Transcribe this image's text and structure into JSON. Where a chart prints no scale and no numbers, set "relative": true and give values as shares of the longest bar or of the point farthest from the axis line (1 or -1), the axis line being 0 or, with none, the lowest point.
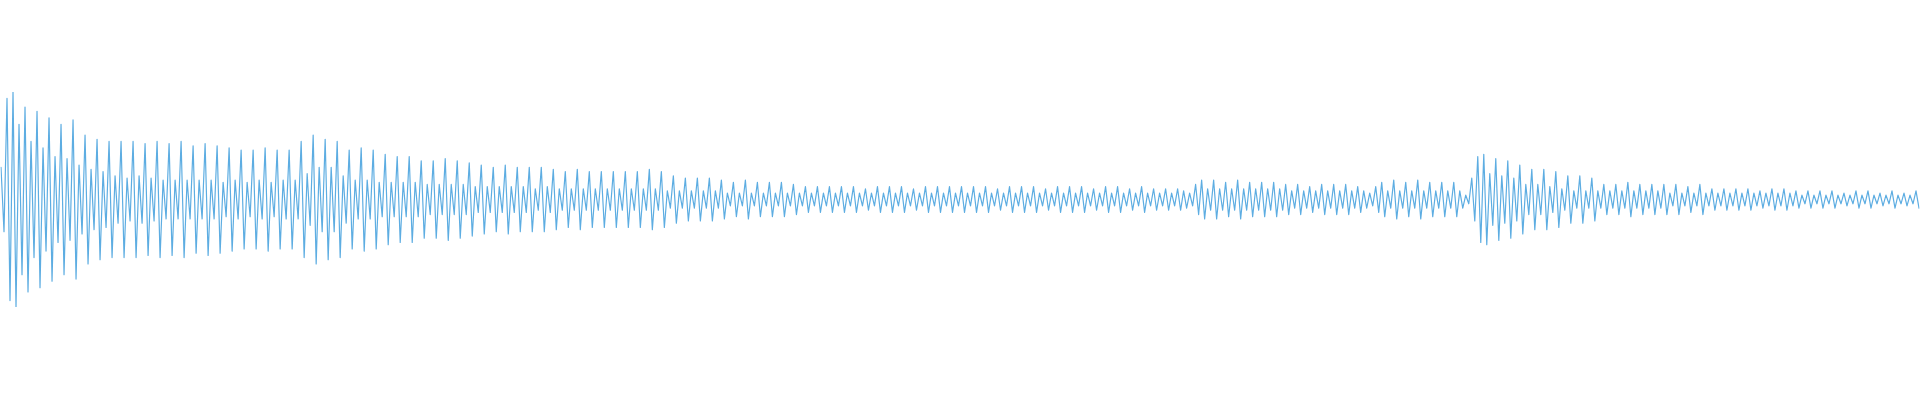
{
  "chart_data": {
    "type": "line",
    "relative": true,
    "color": "#5dade2",
    "categories": [
      null,
      null,
      null,
      null,
      null,
      null,
      null,
      null,
      null,
      null,
      null,
      null,
      null,
      null,
      null,
      null,
      null,
      null,
      null,
      null,
      null,
      null,
      null,
      null,
      null,
      null,
      null,
      null,
      null,
      null,
      null,
      null,
      null,
      null,
      null,
      null,
      null,
      null,
      null,
      null,
      null,
      null,
      null,
      null,
      null,
      null,
      null,
      null,
      null,
      null,
      null,
      null,
      null,
      null,
      null,
      null,
      null,
      null,
      null,
      null,
      null,
      null,
      null,
      null,
      null,
      null,
      null,
      null,
      null,
      null,
      null,
      null,
      null,
      null,
      null,
      null,
      null,
      null,
      null,
      null,
      null,
      null,
      null,
      null,
      null,
      null,
      null,
      null,
      null,
      null,
      null,
      null,
      null,
      null,
      null,
      null,
      null,
      null,
      null,
      null,
      null,
      null,
      null,
      null,
      null,
      null,
      null,
      null,
      null,
      null,
      null,
      null,
      null,
      null,
      null,
      null,
      null,
      null,
      null,
      null,
      null,
      null,
      null,
      null,
      null,
      null,
      null,
      null,
      null,
      null,
      null,
      null,
      null,
      null,
      null,
      null,
      null,
      null,
      null,
      null,
      null,
      null,
      null,
      null,
      null,
      null,
      null,
      null,
      null,
      null,
      null,
      null,
      null,
      null,
      null,
      null,
      null,
      null,
      null,
      null,
      null,
      null,
      null,
      null,
      null,
      null,
      null,
      null,
      null,
      null,
      null,
      null,
      null,
      null,
      null,
      null,
      null,
      null,
      null,
      null,
      null,
      null,
      null,
      null,
      null,
      null,
      null,
      null,
      null,
      null,
      null,
      null,
      null,
      null,
      null,
      null,
      null,
      null,
      null,
      null,
      null,
      null,
      null,
      null,
      null,
      null,
      null,
      null,
      null,
      null,
      null,
      null,
      null,
      null,
      null,
      null,
      null,
      null,
      null,
      null,
      null,
      null,
      null,
      null,
      null,
      null,
      null,
      null,
      null,
      null,
      null,
      null,
      null,
      null,
      null,
      null,
      null,
      null,
      null,
      null,
      null,
      null,
      null,
      null,
      null,
      null,
      null,
      null,
      null,
      null,
      null,
      null,
      null,
      null,
      null,
      null,
      null,
      null,
      null,
      null,
      null,
      null,
      null,
      null,
      null,
      null,
      null,
      null,
      null,
      null,
      null,
      null,
      null,
      null,
      null,
      null,
      null,
      null,
      null,
      null,
      null,
      null,
      null,
      null,
      null,
      null,
      null,
      null,
      null,
      null,
      null,
      null,
      null,
      null,
      null,
      null,
      null,
      null,
      null,
      null,
      null,
      null,
      null,
      null,
      null,
      null,
      null,
      null,
      null,
      null,
      null,
      null,
      null,
      null,
      null,
      null,
      null,
      null,
      null,
      null,
      null,
      null,
      null,
      null,
      null,
      null,
      null,
      null,
      null,
      null,
      null,
      null,
      null,
      null,
      null,
      null,
      null,
      null,
      null,
      null,
      null,
      null,
      null,
      null,
      null,
      null,
      null,
      null,
      null,
      null,
      null,
      null,
      null,
      null,
      null,
      null,
      null,
      null,
      null,
      null,
      null,
      null,
      null,
      null,
      null,
      null,
      null,
      null,
      null,
      null,
      null,
      null,
      null,
      null,
      null,
      null,
      null,
      null,
      null,
      null,
      null,
      null,
      null,
      null,
      null,
      null,
      null,
      null,
      null,
      null,
      null,
      null,
      null,
      null,
      null,
      null,
      null,
      null,
      null,
      null,
      null,
      null,
      null,
      null,
      null,
      null,
      null,
      null,
      null,
      null,
      null,
      null,
      null,
      null,
      null,
      null,
      null,
      null,
      null,
      null,
      null,
      null,
      null,
      null,
      null,
      null,
      null,
      null,
      null,
      null,
      null,
      null,
      null,
      null,
      null,
      null,
      null,
      null,
      null,
      null,
      null,
      null,
      null,
      null,
      null,
      null,
      null,
      null,
      null,
      null,
      null,
      null,
      null,
      null,
      null,
      null,
      null,
      null,
      null,
      null,
      null,
      null,
      null,
      null,
      null,
      null,
      null,
      null,
      null,
      null,
      null,
      null,
      null,
      null,
      null,
      null,
      null,
      null,
      null,
      null,
      null,
      null,
      null,
      null,
      null,
      null,
      null,
      null,
      null,
      null,
      null,
      null,
      null,
      null,
      null,
      null,
      null,
      null,
      null,
      null,
      null,
      null,
      null,
      null,
      null,
      null,
      null,
      null,
      null,
      null,
      null,
      null,
      null,
      null,
      null,
      null,
      null,
      null,
      null,
      null,
      null,
      null,
      null,
      null,
      null,
      null,
      null,
      null,
      null,
      null,
      null,
      null,
      null,
      null,
      null,
      null,
      null,
      null,
      null,
      null,
      null,
      null,
      null,
      null,
      null,
      null,
      null,
      null,
      null,
      null,
      null,
      null,
      null,
      null,
      null,
      null,
      null,
      null,
      null,
      null,
      null,
      null,
      null,
      null,
      null,
      null,
      null,
      null,
      null,
      null,
      null,
      null,
      null,
      null,
      null,
      null,
      null,
      null,
      null,
      null,
      null,
      null,
      null,
      null,
      null,
      null,
      null,
      null,
      null,
      null,
      null,
      null,
      null,
      null,
      null,
      null,
      null,
      null,
      null,
      null,
      null,
      null,
      null,
      null,
      null,
      null,
      null,
      null,
      null,
      null,
      null,
      null,
      null,
      null,
      null,
      null,
      null,
      null,
      null,
      null,
      null,
      null,
      null,
      null,
      null,
      null,
      null,
      null,
      null,
      null,
      null,
      null,
      null,
      null,
      null,
      null,
      null,
      null,
      null,
      null
    ],
    "values": [
      0.65,
      0.35,
      0.97,
      0.03,
      1.0,
      0.0,
      0.85,
      0.15,
      0.93,
      0.07,
      0.77,
      0.23,
      0.91,
      0.09,
      0.74,
      0.26,
      0.88,
      0.12,
      0.7,
      0.3,
      0.85,
      0.15,
      0.69,
      0.31,
      0.87,
      0.13,
      0.66,
      0.34,
      0.8,
      0.2,
      0.64,
      0.36,
      0.78,
      0.22,
      0.63,
      0.37,
      0.77,
      0.23,
      0.61,
      0.39,
      0.77,
      0.23,
      0.6,
      0.4,
      0.77,
      0.23,
      0.61,
      0.39,
      0.76,
      0.24,
      0.6,
      0.4,
      0.77,
      0.23,
      0.59,
      0.41,
      0.76,
      0.24,
      0.59,
      0.41,
      0.77,
      0.23,
      0.59,
      0.41,
      0.75,
      0.25,
      0.59,
      0.41,
      0.76,
      0.24,
      0.59,
      0.41,
      0.75,
      0.25,
      0.58,
      0.42,
      0.74,
      0.26,
      0.59,
      0.41,
      0.73,
      0.27,
      0.58,
      0.42,
      0.73,
      0.27,
      0.59,
      0.41,
      0.74,
      0.26,
      0.58,
      0.42,
      0.73,
      0.27,
      0.59,
      0.41,
      0.73,
      0.27,
      0.59,
      0.41,
      0.77,
      0.23,
      0.62,
      0.38,
      0.8,
      0.2,
      0.65,
      0.35,
      0.78,
      0.22,
      0.65,
      0.35,
      0.77,
      0.23,
      0.61,
      0.39,
      0.73,
      0.27,
      0.59,
      0.41,
      0.74,
      0.26,
      0.59,
      0.41,
      0.73,
      0.27,
      0.58,
      0.42,
      0.71,
      0.29,
      0.58,
      0.42,
      0.7,
      0.3,
      0.58,
      0.42,
      0.7,
      0.3,
      0.58,
      0.42,
      0.68,
      0.32,
      0.57,
      0.43,
      0.68,
      0.32,
      0.57,
      0.43,
      0.69,
      0.31,
      0.57,
      0.43,
      0.68,
      0.32,
      0.57,
      0.43,
      0.67,
      0.33,
      0.56,
      0.44,
      0.66,
      0.34,
      0.56,
      0.44,
      0.65,
      0.35,
      0.56,
      0.44,
      0.66,
      0.34,
      0.56,
      0.44,
      0.65,
      0.35,
      0.56,
      0.44,
      0.65,
      0.35,
      0.55,
      0.45,
      0.65,
      0.35,
      0.56,
      0.44,
      0.64,
      0.36,
      0.55,
      0.45,
      0.63,
      0.37,
      0.55,
      0.45,
      0.64,
      0.36,
      0.55,
      0.45,
      0.63,
      0.37,
      0.55,
      0.45,
      0.63,
      0.37,
      0.55,
      0.45,
      0.63,
      0.37,
      0.55,
      0.45,
      0.63,
      0.37,
      0.55,
      0.45,
      0.63,
      0.37,
      0.55,
      0.45,
      0.64,
      0.36,
      0.55,
      0.45,
      0.63,
      0.37,
      0.54,
      0.46,
      0.61,
      0.39,
      0.54,
      0.46,
      0.6,
      0.4,
      0.54,
      0.46,
      0.6,
      0.4,
      0.54,
      0.46,
      0.6,
      0.4,
      0.54,
      0.46,
      0.59,
      0.41,
      0.53,
      0.47,
      0.58,
      0.42,
      0.53,
      0.47,
      0.59,
      0.41,
      0.53,
      0.47,
      0.58,
      0.42,
      0.53,
      0.47,
      0.58,
      0.42,
      0.53,
      0.47,
      0.58,
      0.42,
      0.53,
      0.47,
      0.57,
      0.43,
      0.53,
      0.47,
      0.56,
      0.44,
      0.53,
      0.47,
      0.56,
      0.44,
      0.53,
      0.47,
      0.56,
      0.44,
      0.53,
      0.47,
      0.56,
      0.44,
      0.53,
      0.47,
      0.56,
      0.44,
      0.53,
      0.47,
      0.55,
      0.45,
      0.53,
      0.47,
      0.56,
      0.44,
      0.53,
      0.47,
      0.56,
      0.44,
      0.53,
      0.47,
      0.56,
      0.44,
      0.53,
      0.47,
      0.55,
      0.45,
      0.53,
      0.47,
      0.56,
      0.44,
      0.53,
      0.47,
      0.56,
      0.44,
      0.53,
      0.47,
      0.56,
      0.44,
      0.53,
      0.47,
      0.56,
      0.44,
      0.53,
      0.47,
      0.56,
      0.44,
      0.53,
      0.47,
      0.56,
      0.44,
      0.53,
      0.47,
      0.55,
      0.45,
      0.53,
      0.47,
      0.56,
      0.44,
      0.53,
      0.47,
      0.56,
      0.44,
      0.53,
      0.47,
      0.56,
      0.44,
      0.53,
      0.47,
      0.55,
      0.45,
      0.53,
      0.47,
      0.56,
      0.44,
      0.53,
      0.47,
      0.56,
      0.44,
      0.53,
      0.47,
      0.56,
      0.44,
      0.53,
      0.47,
      0.55,
      0.45,
      0.53,
      0.47,
      0.56,
      0.44,
      0.53,
      0.47,
      0.56,
      0.44,
      0.53,
      0.47,
      0.55,
      0.45,
      0.53,
      0.47,
      0.56,
      0.44,
      0.53,
      0.47,
      0.55,
      0.45,
      0.53,
      0.47,
      0.55,
      0.45,
      0.53,
      0.47,
      0.55,
      0.45,
      0.54,
      0.46,
      0.53,
      0.47,
      0.57,
      0.43,
      0.59,
      0.41,
      0.55,
      0.45,
      0.59,
      0.41,
      0.55,
      0.45,
      0.58,
      0.42,
      0.55,
      0.45,
      0.59,
      0.41,
      0.55,
      0.45,
      0.58,
      0.42,
      0.55,
      0.45,
      0.58,
      0.42,
      0.55,
      0.45,
      0.58,
      0.42,
      0.55,
      0.45,
      0.57,
      0.43,
      0.54,
      0.46,
      0.57,
      0.43,
      0.54,
      0.46,
      0.56,
      0.44,
      0.54,
      0.46,
      0.57,
      0.43,
      0.54,
      0.46,
      0.57,
      0.43,
      0.54,
      0.46,
      0.57,
      0.43,
      0.54,
      0.46,
      0.56,
      0.44,
      0.54,
      0.46,
      0.53,
      0.47,
      0.56,
      0.44,
      0.58,
      0.42,
      0.54,
      0.46,
      0.59,
      0.41,
      0.54,
      0.46,
      0.58,
      0.42,
      0.54,
      0.46,
      0.59,
      0.41,
      0.54,
      0.46,
      0.58,
      0.42,
      0.54,
      0.46,
      0.58,
      0.42,
      0.54,
      0.46,
      0.58,
      0.42,
      0.54,
      0.46,
      0.52,
      0.48,
      0.6,
      0.4,
      0.7,
      0.3,
      0.71,
      0.29,
      0.62,
      0.38,
      0.69,
      0.31,
      0.61,
      0.39,
      0.68,
      0.32,
      0.6,
      0.4,
      0.66,
      0.34,
      0.57,
      0.43,
      0.64,
      0.36,
      0.57,
      0.43,
      0.64,
      0.36,
      0.56,
      0.44,
      0.63,
      0.37,
      0.55,
      0.45,
      0.61,
      0.39,
      0.54,
      0.46,
      0.61,
      0.39,
      0.54,
      0.46,
      0.6,
      0.4,
      0.54,
      0.46,
      0.57,
      0.43,
      0.54,
      0.46,
      0.57,
      0.43,
      0.54,
      0.46,
      0.58,
      0.42,
      0.54,
      0.46,
      0.57,
      0.43,
      0.54,
      0.46,
      0.57,
      0.43,
      0.54,
      0.46,
      0.57,
      0.43,
      0.53,
      0.47,
      0.57,
      0.43,
      0.53,
      0.47,
      0.56,
      0.44,
      0.53,
      0.47,
      0.57,
      0.43,
      0.53,
      0.47,
      0.55,
      0.45,
      0.53,
      0.47,
      0.55,
      0.45,
      0.53,
      0.47,
      0.55,
      0.45,
      0.53,
      0.47,
      0.55,
      0.45,
      0.53,
      0.47,
      0.54,
      0.46,
      0.53,
      0.47,
      0.55,
      0.45,
      0.53,
      0.47,
      0.55,
      0.45,
      0.53,
      0.47,
      0.54,
      0.46,
      0.52,
      0.48,
      0.54,
      0.46,
      0.52,
      0.48,
      0.54,
      0.46,
      0.52,
      0.48,
      0.54,
      0.46,
      0.52,
      0.48,
      0.53,
      0.47,
      0.52,
      0.48,
      0.54,
      0.46,
      0.52,
      0.48,
      0.54,
      0.46,
      0.52,
      0.48,
      0.53,
      0.47,
      0.52,
      0.48,
      0.54,
      0.46,
      0.52,
      0.48,
      0.53,
      0.47,
      0.52,
      0.48,
      0.54,
      0.46
    ]
  }
}
